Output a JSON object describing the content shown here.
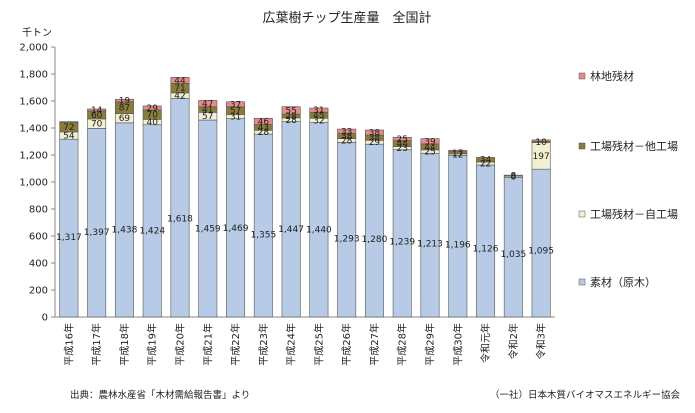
{
  "chart_data": {
    "type": "bar",
    "stacked": true,
    "title": "広葉樹チップ生産量　全国計",
    "unit_label": "千トン",
    "ylim": [
      0,
      2000
    ],
    "yticks": [
      "0",
      "200",
      "400",
      "600",
      "800",
      "1,000",
      "1,200",
      "1,400",
      "1,600",
      "1,800",
      "2,000"
    ],
    "ytick_values": [
      0,
      200,
      400,
      600,
      800,
      1000,
      1200,
      1400,
      1600,
      1800,
      2000
    ],
    "grid": false,
    "legend_position": "right",
    "categories": [
      "平成16年",
      "平成17年",
      "平成18年",
      "平成19年",
      "平成20年",
      "平成21年",
      "平成22年",
      "平成23年",
      "平成24年",
      "平成25年",
      "平成26年",
      "平成27年",
      "平成28年",
      "平成29年",
      "平成30年",
      "令和元年",
      "令和2年",
      "令和3年"
    ],
    "series": [
      {
        "name": "素材（原木）",
        "color": "#b7cbe6",
        "values": [
          1317,
          1397,
          1438,
          1424,
          1618,
          1459,
          1469,
          1355,
          1447,
          1440,
          1293,
          1280,
          1239,
          1213,
          1196,
          1126,
          1035,
          1095
        ],
        "labels": [
          "1,317",
          "1,397",
          "1,438",
          "1,424",
          "1,618",
          "1,459",
          "1,469",
          "1,355",
          "1,447",
          "1,440",
          "1,293",
          "1,280",
          "1,239",
          "1,213",
          "1,196",
          "1,126",
          "1,035",
          "1,095"
        ]
      },
      {
        "name": "工場残材－自工場",
        "color": "#f2f0d2",
        "values": [
          54,
          70,
          69,
          40,
          42,
          57,
          31,
          28,
          28,
          32,
          28,
          29,
          23,
          25,
          12,
          22,
          8,
          197
        ],
        "labels": [
          "54",
          "70",
          "69",
          "40",
          "42",
          "57",
          "31",
          "28",
          "28",
          "32",
          "28",
          "29",
          "23",
          "25",
          "12",
          "22",
          "8",
          "197"
        ]
      },
      {
        "name": "工場残材－他工場",
        "color": "#8a7d3c",
        "values": [
          72,
          60,
          87,
          70,
          71,
          41,
          57,
          43,
          28,
          45,
          38,
          38,
          44,
          44,
          17,
          34,
          8,
          10
        ],
        "labels": [
          "72",
          "60",
          "87",
          "70",
          "71",
          "41",
          "57",
          "43",
          "28",
          "45",
          "38",
          "38",
          "44",
          "44",
          "17",
          "34",
          "8",
          "10"
        ]
      },
      {
        "name": "林地残材",
        "color": "#e98a8a",
        "values": [
          4,
          14,
          19,
          29,
          44,
          47,
          37,
          46,
          55,
          31,
          33,
          38,
          25,
          39,
          10,
          0,
          0,
          10
        ],
        "labels": [
          "",
          "14",
          "19",
          "29",
          "44",
          "47",
          "37",
          "46",
          "55",
          "31",
          "33",
          "38",
          "25",
          "39",
          "",
          "",
          "",
          ""
        ]
      }
    ]
  },
  "source_note": "出典：農林水産省「木材需給報告書」より",
  "org_note": "（一社）日本木質バイオマスエネルギー協会"
}
